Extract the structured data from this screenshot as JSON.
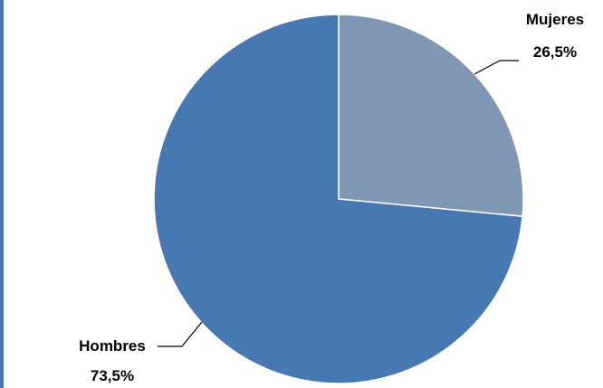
{
  "chart_data": {
    "type": "pie",
    "slices": [
      {
        "label": "Mujeres",
        "value_label": "26,5%",
        "value": 26.5,
        "color": "#7f96b4"
      },
      {
        "label": "Hombres",
        "value_label": "73,5%",
        "value": 73.5,
        "color": "#4778b2"
      }
    ],
    "start_angle_deg": 0,
    "direction": "clockwise",
    "legend": "none",
    "leader_line_color": "#000000"
  }
}
